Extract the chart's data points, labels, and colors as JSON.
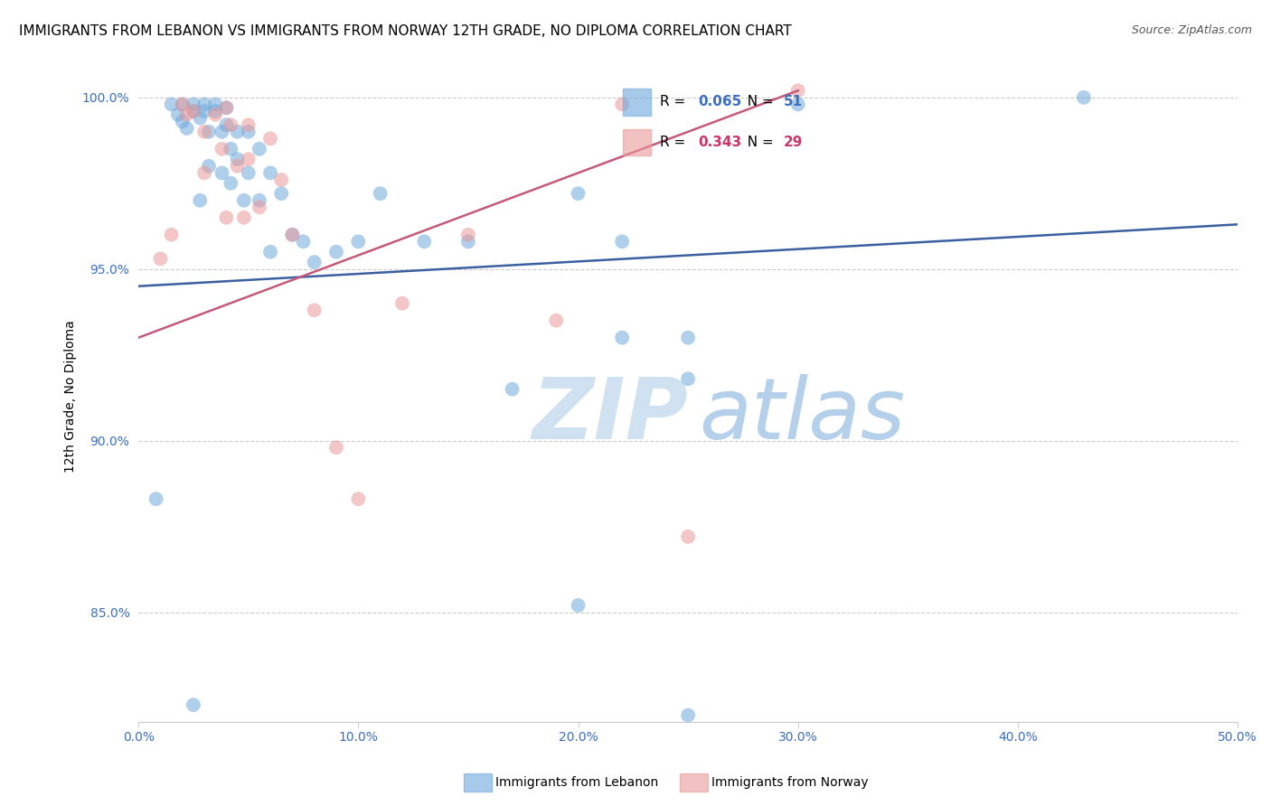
{
  "title": "IMMIGRANTS FROM LEBANON VS IMMIGRANTS FROM NORWAY 12TH GRADE, NO DIPLOMA CORRELATION CHART",
  "source": "Source: ZipAtlas.com",
  "ylabel_label": "12th Grade, No Diploma",
  "legend_label1": "Immigrants from Lebanon",
  "legend_label2": "Immigrants from Norway",
  "R1": 0.065,
  "N1": 51,
  "R2": 0.343,
  "N2": 29,
  "xlim": [
    0.0,
    0.5
  ],
  "ylim": [
    0.818,
    1.008
  ],
  "xticks": [
    0.0,
    0.1,
    0.2,
    0.3,
    0.4,
    0.5
  ],
  "yticks": [
    0.85,
    0.9,
    0.95,
    1.0
  ],
  "ytick_labels": [
    "85.0%",
    "90.0%",
    "95.0%",
    "100.0%"
  ],
  "xtick_labels": [
    "0.0%",
    "10.0%",
    "20.0%",
    "30.0%",
    "40.0%",
    "50.0%"
  ],
  "color_blue": "#6fa8dc",
  "color_pink": "#ea9999",
  "line_color_blue": "#3c5fa0",
  "line_color_pink": "#c45a7a",
  "watermark_zip": "ZIP",
  "watermark_atlas": "atlas",
  "blue_line_x0": 0.0,
  "blue_line_y0": 0.945,
  "blue_line_x1": 0.5,
  "blue_line_y1": 0.963,
  "pink_line_x0": 0.0,
  "pink_line_y0": 0.93,
  "pink_line_x1": 0.3,
  "pink_line_y1": 1.002,
  "blue_points_x": [
    0.008,
    0.015,
    0.018,
    0.02,
    0.02,
    0.022,
    0.025,
    0.025,
    0.028,
    0.028,
    0.03,
    0.03,
    0.032,
    0.032,
    0.035,
    0.035,
    0.038,
    0.038,
    0.04,
    0.04,
    0.042,
    0.042,
    0.045,
    0.045,
    0.048,
    0.05,
    0.05,
    0.055,
    0.055,
    0.06,
    0.06,
    0.065,
    0.07,
    0.075,
    0.08,
    0.09,
    0.1,
    0.11,
    0.13,
    0.15,
    0.17,
    0.2,
    0.22,
    0.22,
    0.25,
    0.3,
    0.43,
    0.2,
    0.25,
    0.25,
    0.025
  ],
  "blue_points_y": [
    0.883,
    0.998,
    0.995,
    0.998,
    0.993,
    0.991,
    0.998,
    0.996,
    0.994,
    0.97,
    0.998,
    0.996,
    0.99,
    0.98,
    0.998,
    0.996,
    0.99,
    0.978,
    0.997,
    0.992,
    0.985,
    0.975,
    0.99,
    0.982,
    0.97,
    0.99,
    0.978,
    0.985,
    0.97,
    0.978,
    0.955,
    0.972,
    0.96,
    0.958,
    0.952,
    0.955,
    0.958,
    0.972,
    0.958,
    0.958,
    0.915,
    0.972,
    0.93,
    0.958,
    0.93,
    0.998,
    1.0,
    0.852,
    0.918,
    0.82,
    0.823
  ],
  "pink_points_x": [
    0.01,
    0.015,
    0.02,
    0.022,
    0.025,
    0.03,
    0.03,
    0.035,
    0.038,
    0.04,
    0.04,
    0.042,
    0.045,
    0.048,
    0.05,
    0.05,
    0.055,
    0.06,
    0.065,
    0.07,
    0.08,
    0.09,
    0.1,
    0.12,
    0.15,
    0.19,
    0.22,
    0.25,
    0.3
  ],
  "pink_points_y": [
    0.953,
    0.96,
    0.998,
    0.995,
    0.996,
    0.99,
    0.978,
    0.995,
    0.985,
    0.965,
    0.997,
    0.992,
    0.98,
    0.965,
    0.992,
    0.982,
    0.968,
    0.988,
    0.976,
    0.96,
    0.938,
    0.898,
    0.883,
    0.94,
    0.96,
    0.935,
    0.998,
    0.872,
    1.002
  ],
  "blue_size": 130,
  "pink_size": 130,
  "title_fontsize": 11,
  "axis_label_fontsize": 10,
  "tick_fontsize": 10
}
